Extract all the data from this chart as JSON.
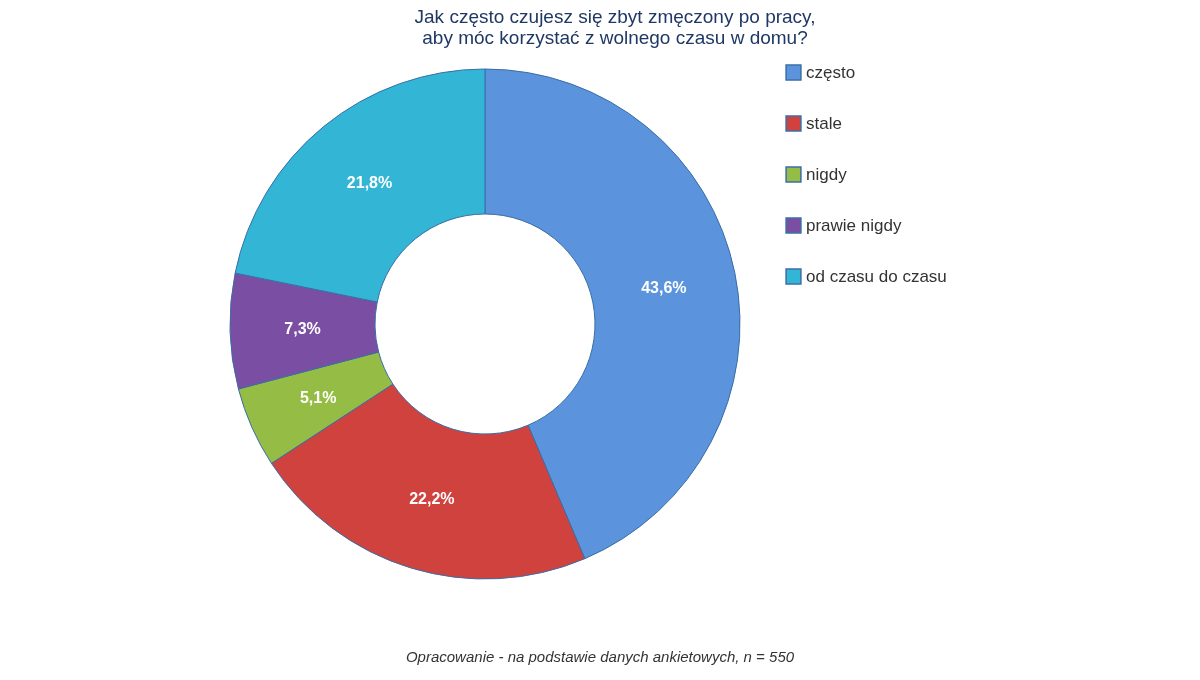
{
  "chart_data": {
    "type": "donut",
    "title": "Jak często czujesz się zbyt zmęczony po pracy,\naby móc korzystać z wolnego czasu w domu?",
    "categories": [
      "często",
      "stale",
      "nigdy",
      "prawie nigdy",
      "od czasu do czasu"
    ],
    "values": [
      43.6,
      22.2,
      5.1,
      7.3,
      21.8
    ],
    "value_labels": [
      "43,6%",
      "22,2%",
      "5,1%",
      "7,3%",
      "21,8%"
    ],
    "colors": [
      "#5b93dc",
      "#d0423e",
      "#95bd45",
      "#7a4fa3",
      "#33b6d6"
    ],
    "legend": "right",
    "annotations": [
      "Opracowanie - na podstawie danych ankietowych, n = 550"
    ]
  }
}
